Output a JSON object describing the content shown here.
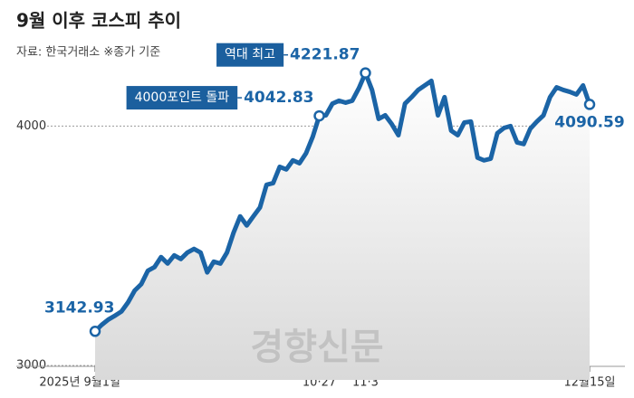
{
  "chart_data": {
    "type": "line",
    "title": "9월 이후 코스피 추이",
    "subtitle": "자료: 한국거래소 ※종가 기준",
    "watermark": "경향신문",
    "color": "#1b64a6",
    "ylim": [
      2940,
      4300
    ],
    "yticks": [
      3000,
      4000
    ],
    "grid": true,
    "categories": [
      "2025년 9월1일",
      null,
      null,
      null,
      null,
      null,
      null,
      null,
      null,
      null,
      null,
      null,
      null,
      null,
      null,
      null,
      null,
      null,
      null,
      null,
      null,
      null,
      null,
      null,
      null,
      null,
      null,
      null,
      null,
      null,
      null,
      null,
      null,
      null,
      "10·27",
      null,
      null,
      null,
      null,
      null,
      null,
      "11·3",
      null,
      null,
      null,
      null,
      null,
      null,
      null,
      null,
      null,
      null,
      null,
      null,
      null,
      null,
      null,
      null,
      null,
      null,
      null,
      null,
      null,
      null,
      null,
      null,
      null,
      null,
      null,
      null,
      null,
      null,
      null,
      null,
      null,
      "12월15일"
    ],
    "values": [
      3142.93,
      3170,
      3192,
      3208,
      3226,
      3264,
      3313,
      3340,
      3396,
      3411,
      3453,
      3426,
      3460,
      3445,
      3472,
      3487,
      3472,
      3389,
      3434,
      3426,
      3472,
      3555,
      3623,
      3585,
      3623,
      3660,
      3755,
      3762,
      3830,
      3819,
      3857,
      3845,
      3887,
      3955,
      4042.83,
      4045,
      4094,
      4106,
      4098,
      4106,
      4158,
      4221.87,
      4151,
      4030,
      4045,
      4008,
      3962,
      4094,
      4121,
      4151,
      4170,
      4189,
      4045,
      4121,
      3981,
      3962,
      4015,
      4019,
      3868,
      3857,
      3864,
      3970,
      3992,
      4000,
      3932,
      3925,
      3989,
      4019,
      4045,
      4121,
      4162,
      4151,
      4143,
      4132,
      4170,
      4090.59
    ],
    "notes": [
      null,
      null,
      null,
      null,
      null,
      null,
      null,
      null,
      null,
      null,
      null,
      null,
      null,
      null,
      null,
      null,
      null,
      null,
      null,
      null,
      null,
      null,
      null,
      null,
      null,
      null,
      null,
      null,
      null,
      null,
      null,
      null,
      null,
      null,
      "4000포인트 돌파",
      null,
      null,
      null,
      null,
      null,
      null,
      "역대 최고",
      null,
      null,
      null,
      null,
      null,
      null,
      null,
      null,
      null,
      null,
      null,
      null,
      null,
      null,
      null,
      null,
      null,
      null,
      null,
      null,
      null,
      null,
      null,
      null,
      null,
      null,
      null,
      null,
      null,
      null,
      null,
      null,
      null,
      null
    ]
  }
}
